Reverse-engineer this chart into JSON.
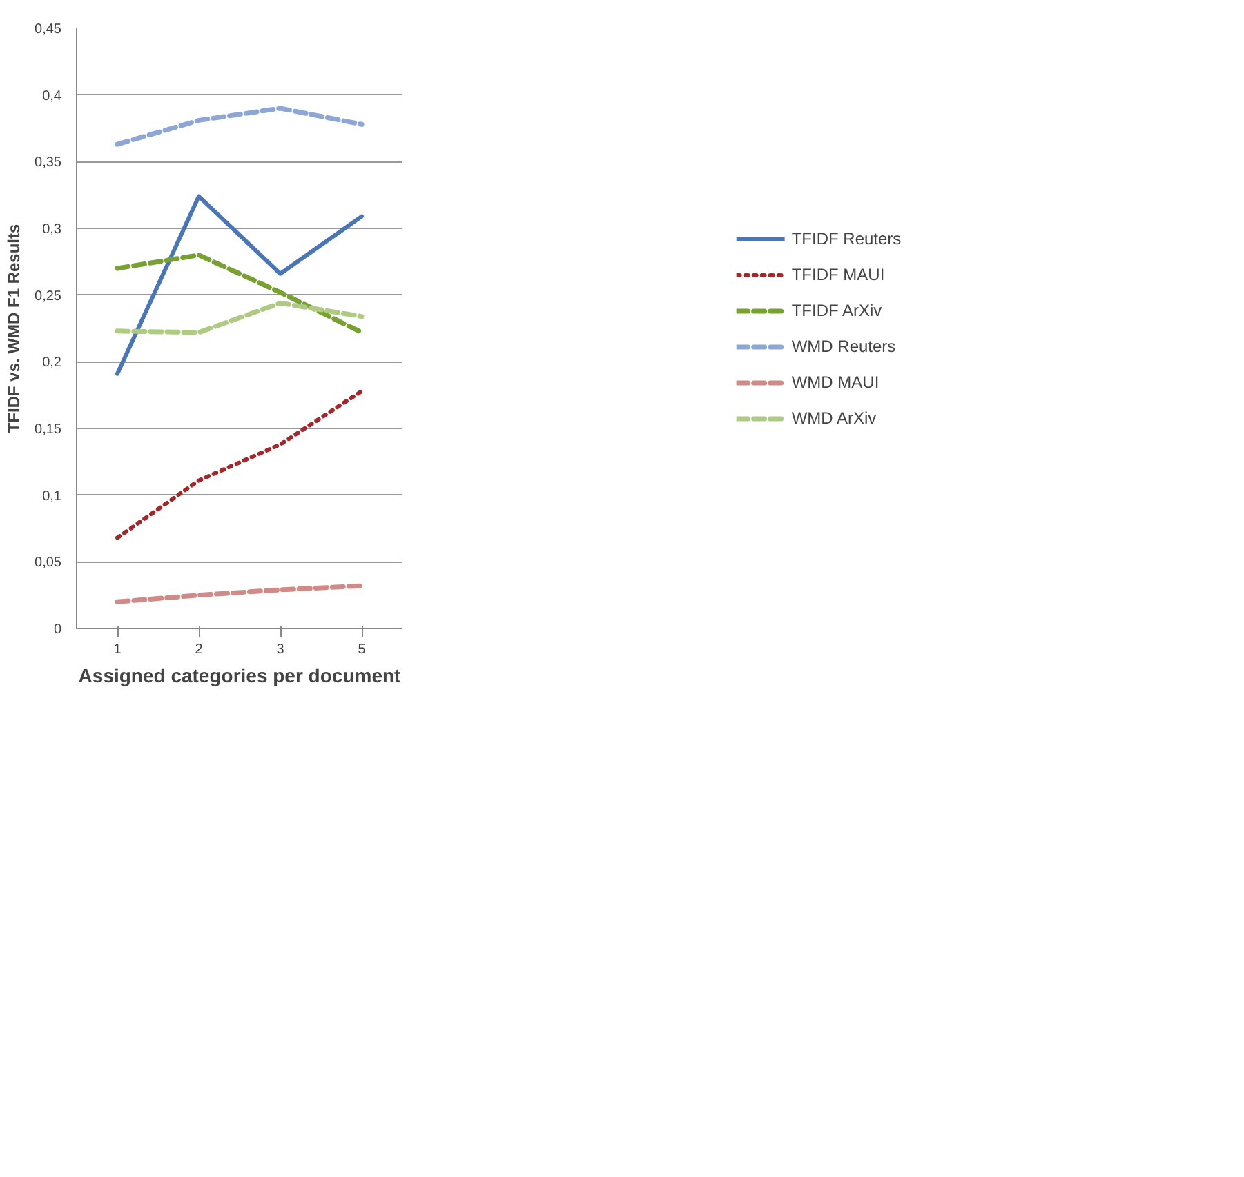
{
  "chart_data": {
    "type": "line",
    "xlabel": "Assigned categories per document",
    "ylabel": "TFIDF vs. WMD F1 Results",
    "categories": [
      "1",
      "2",
      "3",
      "5"
    ],
    "series": [
      {
        "name": "TFIDF Reuters",
        "color": "#4a76b5",
        "line_style": "solid",
        "values": [
          0.191,
          0.324,
          0.266,
          0.309
        ]
      },
      {
        "name": "TFIDF MAUI",
        "color": "#a3282c",
        "line_style": "dotted",
        "values": [
          0.068,
          0.111,
          0.138,
          0.178
        ]
      },
      {
        "name": "TFIDF ArXiv",
        "color": "#78a032",
        "line_style": "dashed",
        "values": [
          0.27,
          0.28,
          0.252,
          0.222
        ]
      },
      {
        "name": "WMD Reuters",
        "color": "#8ea6d6",
        "line_style": "dashed",
        "values": [
          0.363,
          0.381,
          0.39,
          0.378
        ]
      },
      {
        "name": "WMD MAUI",
        "color": "#d08a88",
        "line_style": "dashed",
        "values": [
          0.02,
          0.025,
          0.029,
          0.032
        ]
      },
      {
        "name": "WMD ArXiv",
        "color": "#afca82",
        "line_style": "dashed",
        "values": [
          0.223,
          0.222,
          0.244,
          0.234
        ]
      }
    ],
    "ylim": [
      0,
      0.45
    ],
    "yticks": [
      {
        "value": 0,
        "label": "0"
      },
      {
        "value": 0.05,
        "label": "0,05"
      },
      {
        "value": 0.1,
        "label": "0,1"
      },
      {
        "value": 0.15,
        "label": "0,15"
      },
      {
        "value": 0.2,
        "label": "0,2"
      },
      {
        "value": 0.25,
        "label": "0,25"
      },
      {
        "value": 0.3,
        "label": "0,3"
      },
      {
        "value": 0.35,
        "label": "0,35"
      },
      {
        "value": 0.4,
        "label": "0,4"
      },
      {
        "value": 0.45,
        "label": "0,45"
      }
    ],
    "grid": "y",
    "legend": "right",
    "marker": "none"
  }
}
